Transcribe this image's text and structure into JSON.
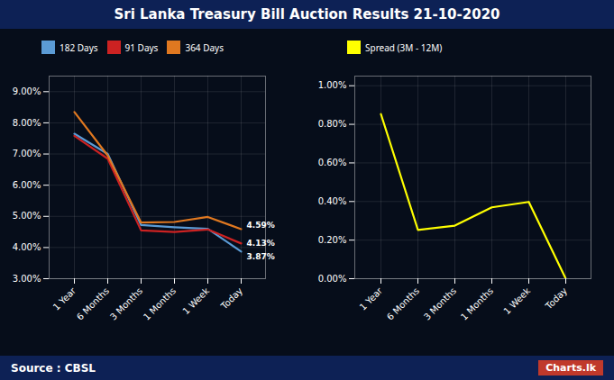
{
  "caption": [
    "Source : CBSL",
    "Charts.lk"
  ],
  "chart_data": [
    {
      "type": "line",
      "title": "Sri Lanka Treasury Bill Auction Results  21-10-2020",
      "categories": [
        "1 Year",
        "6 Months",
        "3 Months",
        "1 Months",
        "1 Week",
        "Today"
      ],
      "series": [
        {
          "name": "182 Days",
          "color": "#5b9bd5",
          "values": [
            7.65,
            7.0,
            4.72,
            4.65,
            4.6,
            3.87
          ]
        },
        {
          "name": "91 Days",
          "color": "#cc2222",
          "values": [
            7.58,
            6.85,
            4.55,
            4.5,
            4.58,
            4.13
          ]
        },
        {
          "name": "364 Days",
          "color": "#e07820",
          "values": [
            8.35,
            6.95,
            4.8,
            4.82,
            4.98,
            4.59
          ]
        }
      ],
      "ylim": [
        3.0,
        9.5
      ],
      "yticks": [
        {
          "value": 3.0,
          "label": "3.00%"
        },
        {
          "value": 4.0,
          "label": "4.00%"
        },
        {
          "value": 5.0,
          "label": "5.00%"
        },
        {
          "value": 6.0,
          "label": "6.00%"
        },
        {
          "value": 7.0,
          "label": "7.00%"
        },
        {
          "value": 8.0,
          "label": "8.00%"
        },
        {
          "value": 9.0,
          "label": "9.00%"
        }
      ],
      "annotations": [
        {
          "text": "4.59%",
          "x": "Today",
          "y": 4.59
        },
        {
          "text": "4.13%",
          "x": "Today",
          "y": 4.13
        },
        {
          "text": "3.87%",
          "x": "Today",
          "y": 3.87
        }
      ],
      "grid": true,
      "legend": "top"
    },
    {
      "type": "line",
      "categories": [
        "1 Year",
        "6 Months",
        "3 Months",
        "1 Months",
        "1 Week",
        "Today"
      ],
      "series": [
        {
          "name": "Spread (3M - 12M)",
          "color": "#ffff00",
          "values": [
            0.853,
            0.253,
            0.275,
            0.37,
            0.398,
            0.0
          ]
        }
      ],
      "ylim": [
        0.0,
        1.05
      ],
      "yticks": [
        {
          "value": 0.0,
          "label": "0.00%"
        },
        {
          "value": 0.2,
          "label": "0.20%"
        },
        {
          "value": 0.4,
          "label": "0.40%"
        },
        {
          "value": 0.6,
          "label": "0.60%"
        },
        {
          "value": 0.8,
          "label": "0.80%"
        },
        {
          "value": 1.0,
          "label": "1.00%"
        }
      ],
      "grid": true,
      "legend": "top"
    }
  ]
}
